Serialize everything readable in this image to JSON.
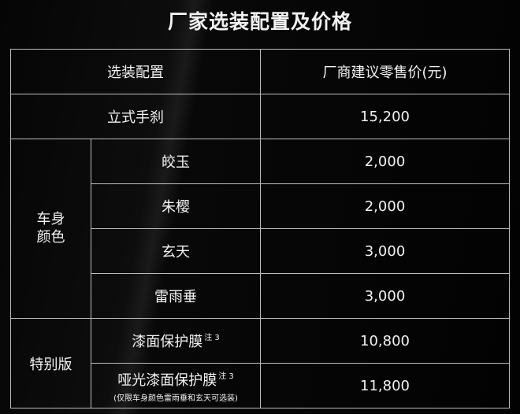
{
  "title": "厂家选装配置及价格",
  "header": {
    "option": "选装配置",
    "price": "厂商建议零售价(元)"
  },
  "rows": {
    "handbrake": {
      "label": "立式手刹",
      "price": "15,200"
    },
    "body_color": {
      "group": "车身\n颜色",
      "items": [
        {
          "label": "皎玉",
          "price": "2,000"
        },
        {
          "label": "朱樱",
          "price": "2,000"
        },
        {
          "label": "玄天",
          "price": "3,000"
        },
        {
          "label": "雷雨垂",
          "price": "3,000"
        }
      ]
    },
    "special": {
      "group": "特别版",
      "items": [
        {
          "label": "漆面保护膜",
          "sup": "注 3",
          "price": "10,800"
        },
        {
          "label": "哑光漆面保护膜",
          "sup": "注 3",
          "note": "(仅限车身颜色雷雨垂和玄天可选装)",
          "price": "11,800"
        }
      ]
    }
  }
}
